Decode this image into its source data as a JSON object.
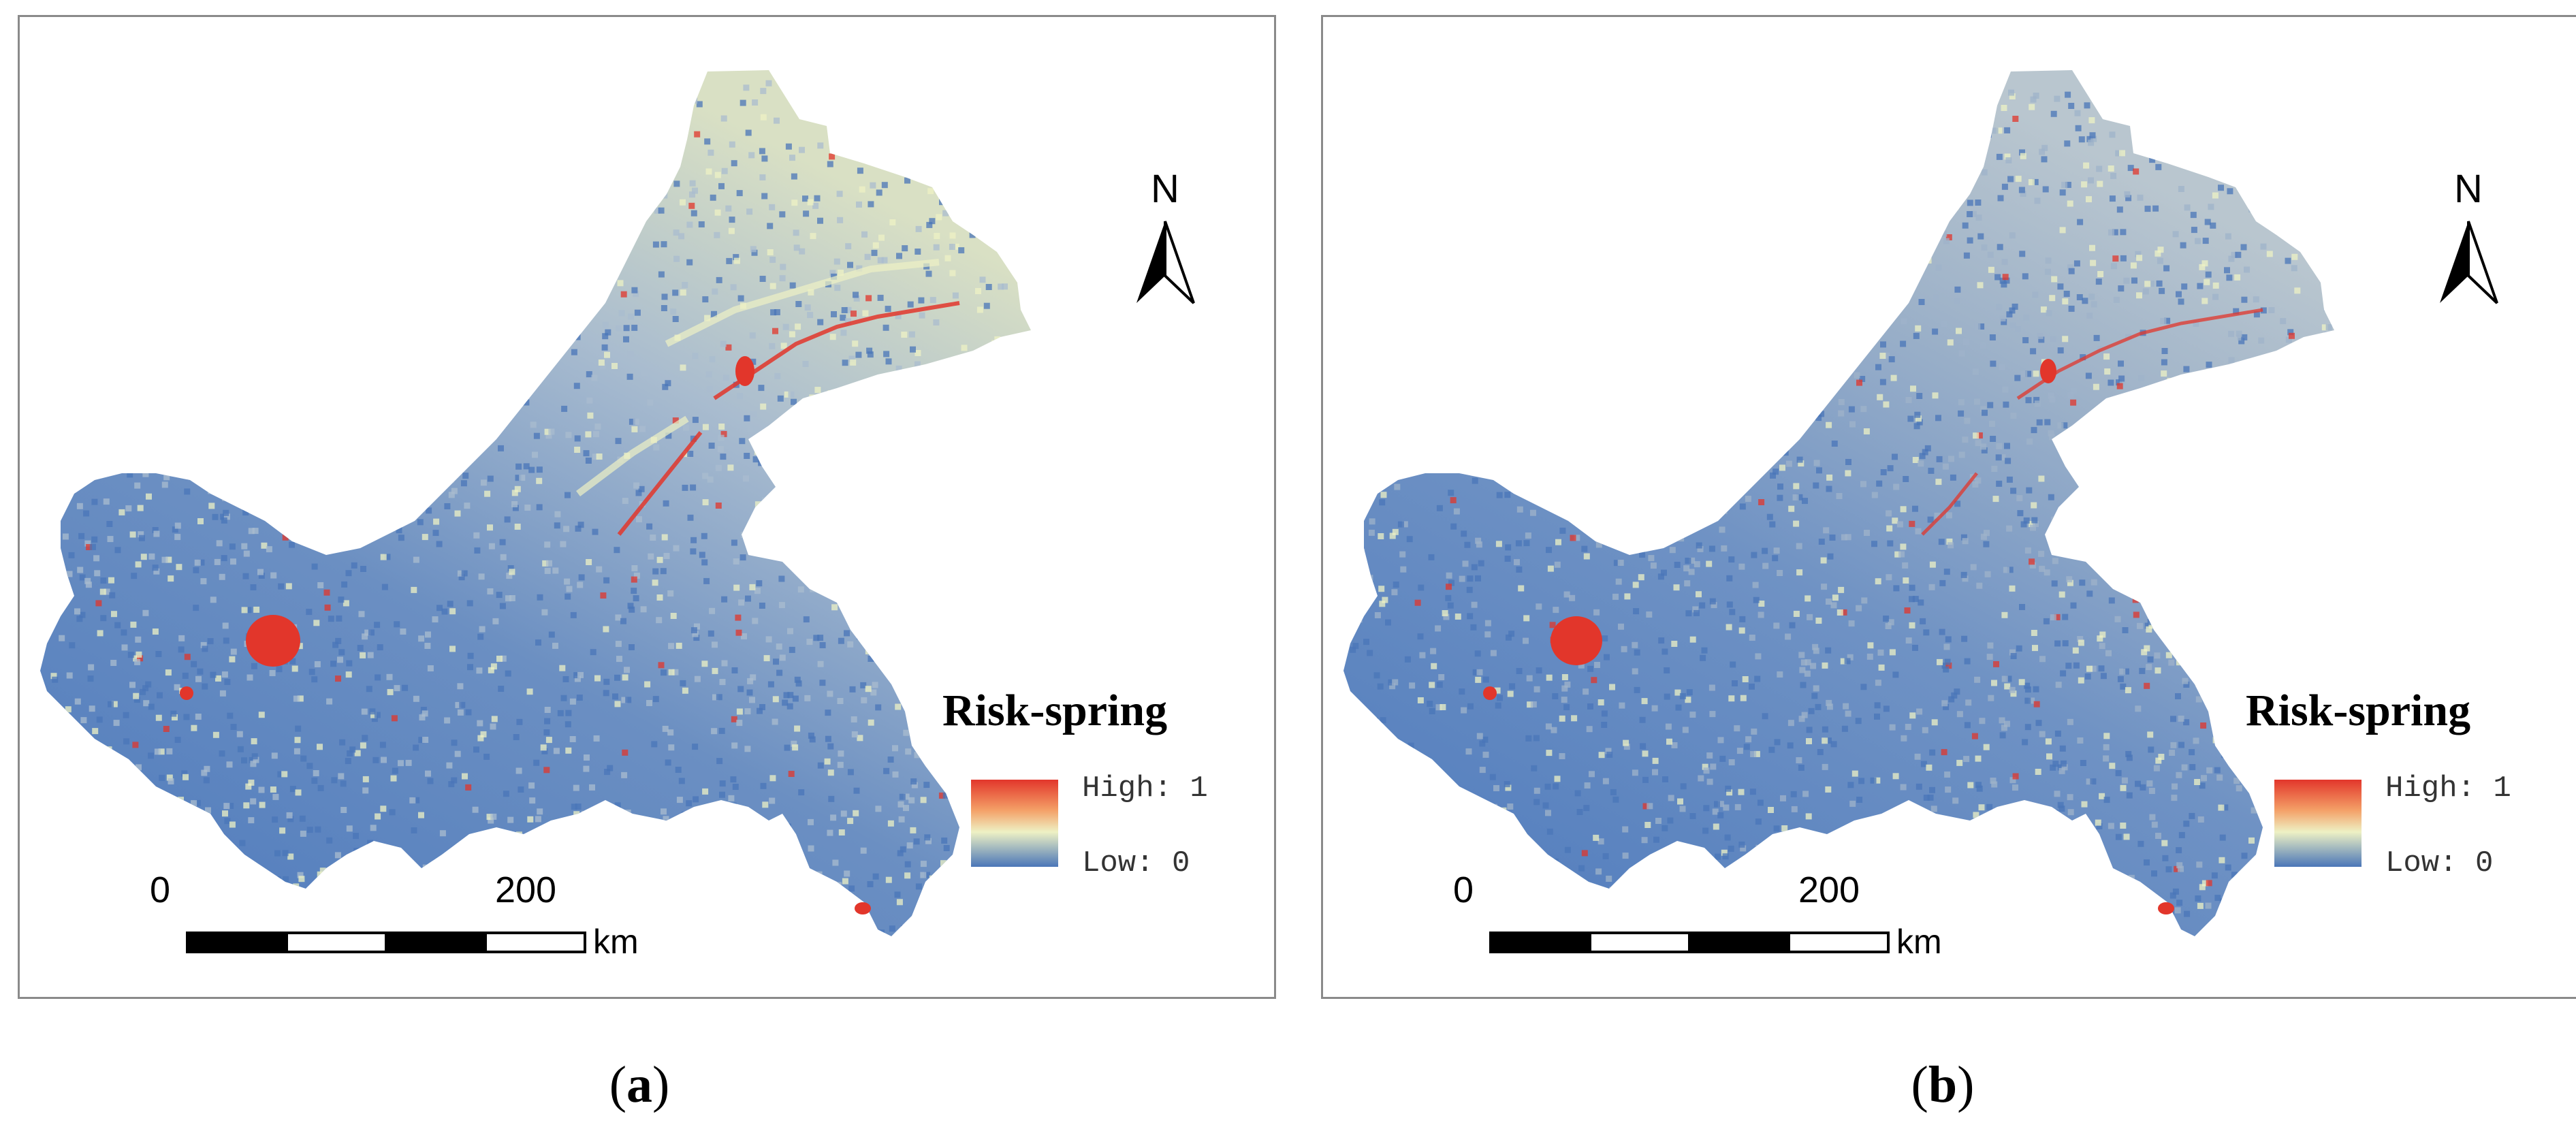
{
  "panels": [
    {
      "id": "a",
      "caption": "a",
      "legend": {
        "title": "Risk-spring",
        "high": "High: 1",
        "low": "Low: 0"
      },
      "scale": {
        "start": "0",
        "end": "200",
        "unit": "km"
      },
      "north": "N",
      "colors": {
        "low": "#4a76b8",
        "mid_low": "#a9bccf",
        "mid": "#eef1c4",
        "high": "#e2362b"
      }
    },
    {
      "id": "b",
      "caption": "b",
      "legend": {
        "title": "Risk-spring",
        "high": "High: 1",
        "low": "Low: 0"
      },
      "scale": {
        "start": "0",
        "end": "200",
        "unit": "km"
      },
      "north": "N",
      "colors": {
        "low": "#4a76b8",
        "mid_low": "#9fb3c9",
        "mid": "#eef1c4",
        "high": "#e2362b"
      }
    }
  ]
}
